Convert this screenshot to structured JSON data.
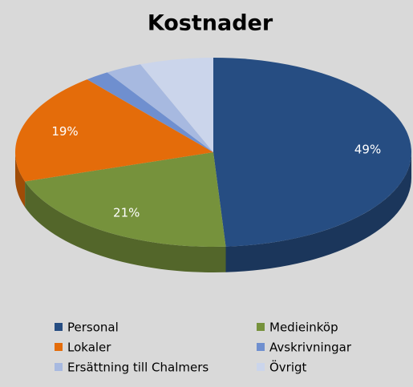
{
  "chart_data": {
    "type": "pie",
    "title": "Kostnader",
    "categories": [
      "Personal",
      "Medieinköp",
      "Lokaler",
      "Avskrivningar",
      "Ersättning till Chalmers",
      "Övrigt"
    ],
    "values": [
      49,
      21,
      19,
      2,
      3,
      6
    ],
    "value_labels": [
      "49%",
      "21%",
      "19%",
      null,
      null,
      null
    ],
    "colors": [
      "#264d82",
      "#76923c",
      "#e46c0a",
      "#6f8fcf",
      "#a7b9e0",
      "#cbd5eb"
    ],
    "legend": "bottom"
  }
}
